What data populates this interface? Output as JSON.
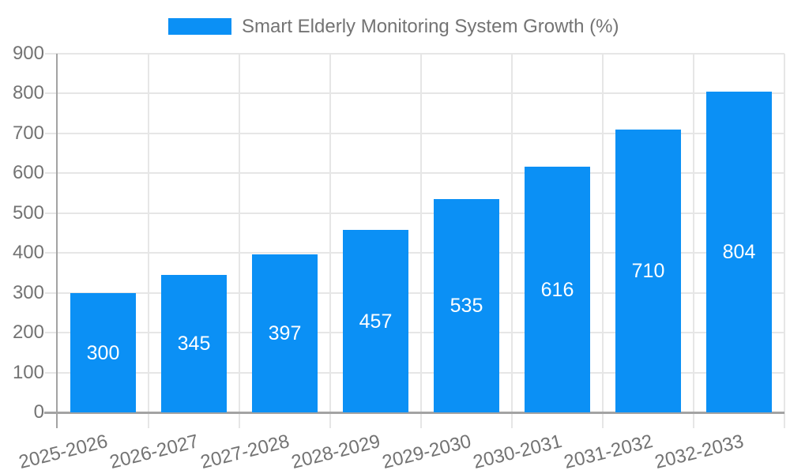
{
  "chart_data": {
    "type": "bar",
    "title": "Smart Elderly Monitoring System Growth (%)",
    "legend_entries": [
      "Smart Elderly Monitoring System Growth (%)"
    ],
    "legend_position": "top-center",
    "categories": [
      "2025-2026",
      "2026-2027",
      "2027-2028",
      "2028-2029",
      "2029-2030",
      "2030-2031",
      "2031-2032",
      "2032-2033"
    ],
    "values": [
      300,
      345,
      397,
      457,
      535,
      616,
      710,
      804
    ],
    "xlabel": "",
    "ylabel": "",
    "ylim": [
      0,
      900
    ],
    "ytick_step": 100,
    "ytick_labels": [
      "0",
      "100",
      "200",
      "300",
      "400",
      "500",
      "600",
      "700",
      "800",
      "900"
    ],
    "grid": true,
    "bar_color": "#0b90f5",
    "value_label_color": "#ffffff",
    "axis_text_color": "#737373",
    "grid_color": "#e6e6e6",
    "axis_line_color": "#a3a3a3",
    "x_label_rotation_deg": -14
  }
}
